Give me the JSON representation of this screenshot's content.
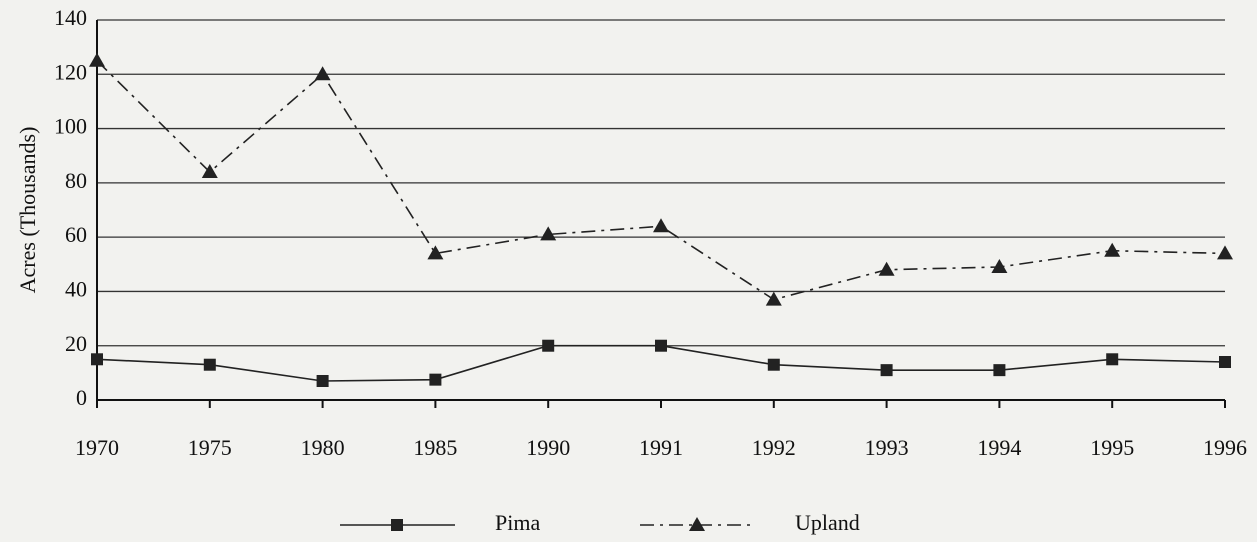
{
  "chart_data": {
    "type": "line",
    "y_label": "Acres (Thousands)",
    "categories": [
      "1970",
      "1975",
      "1980",
      "1985",
      "1990",
      "1991",
      "1992",
      "1993",
      "1994",
      "1995",
      "1996"
    ],
    "series": [
      {
        "name": "Pima",
        "color": "#222222",
        "marker": "square",
        "dash": "solid",
        "values": [
          15,
          13,
          7,
          7.5,
          20,
          20,
          13,
          11,
          11,
          15,
          14
        ]
      },
      {
        "name": "Upland",
        "color": "#222222",
        "marker": "triangle",
        "dash": "dashdot",
        "values": [
          125,
          84,
          120,
          54,
          61,
          64,
          37,
          48,
          49,
          55,
          54
        ]
      }
    ],
    "ylim": [
      0,
      140
    ],
    "yticks": [
      0,
      20,
      40,
      60,
      80,
      100,
      120,
      140
    ],
    "grid": true
  }
}
